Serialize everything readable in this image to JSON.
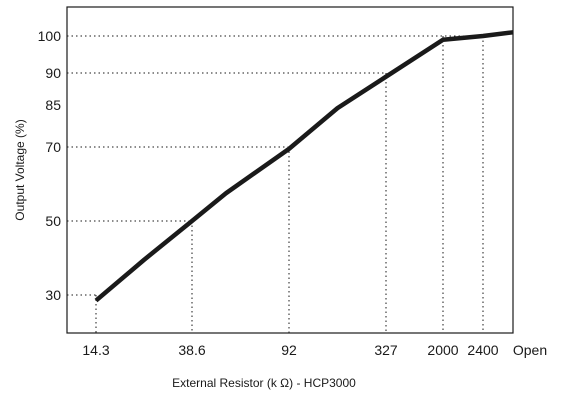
{
  "chart_data": {
    "type": "line",
    "title": "",
    "xlabel": "External Resistor (k  Ω) - HCP3000",
    "ylabel": "Output Voltage (%)",
    "x_tick_labels": [
      "14.3",
      "38.6",
      "92",
      "327",
      "2000",
      "2400",
      "Open"
    ],
    "y_ticks": [
      30,
      50,
      70,
      85,
      90,
      100
    ],
    "y_tick_labels": [
      "30",
      "50",
      "70",
      "85",
      "90",
      "100"
    ],
    "ylim": [
      20,
      110
    ],
    "grid": "dotted guide lines",
    "series": [
      {
        "x": [
          0,
          0.5,
          1,
          1.35,
          2,
          2.5,
          3,
          4,
          5,
          6
        ],
        "y": [
          28.5,
          39.5,
          50,
          57.5,
          69.5,
          80.5,
          89,
          99,
          100,
          101
        ]
      }
    ],
    "guides": [
      {
        "x": 0,
        "y": 30
      },
      {
        "x": 1,
        "y": 50
      },
      {
        "x": 2,
        "y": 70
      },
      {
        "x": 3,
        "y": 90
      },
      {
        "x": 4,
        "y": 100
      },
      {
        "x": 5,
        "y": 100
      }
    ],
    "line_color": "#1a1a1a",
    "guide_color": "#1a1a1a"
  }
}
